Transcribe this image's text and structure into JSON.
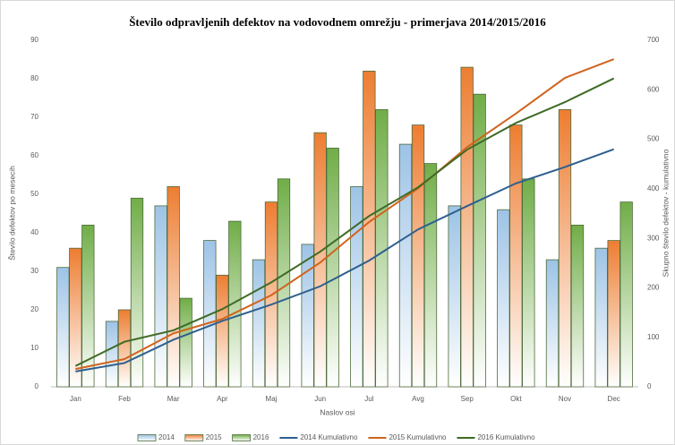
{
  "chart_data": {
    "type": "bar",
    "title": "Število odpravljenih defektov na vodovodnem omrežju - primerjava 2014/2015/2016",
    "x_label": "Naslov osi",
    "y_label": "Število defektov po mesecih",
    "y2_label": "Skupno število defektov - kumulativno",
    "categories": [
      "Jan",
      "Feb",
      "Mar",
      "Apr",
      "Maj",
      "Jun",
      "Jul",
      "Avg",
      "Sep",
      "Okt",
      "Nov",
      "Dec"
    ],
    "series": [
      {
        "name": "2014",
        "color": "#9dc3e6",
        "values": [
          31,
          17,
          47,
          38,
          33,
          37,
          52,
          63,
          47,
          46,
          33,
          36
        ]
      },
      {
        "name": "2015",
        "color": "#ed7d31",
        "values": [
          36,
          20,
          52,
          29,
          48,
          66,
          82,
          68,
          83,
          68,
          72,
          38
        ]
      },
      {
        "name": "2016",
        "color": "#70ad47",
        "values": [
          42,
          49,
          23,
          43,
          54,
          62,
          72,
          58,
          76,
          54,
          42,
          48
        ]
      },
      {
        "name": "2014 Kumulativno",
        "color": "#2e5f8f",
        "type": "line",
        "axis": "y2",
        "values": [
          31,
          48,
          95,
          133,
          166,
          203,
          255,
          318,
          365,
          411,
          444,
          480
        ]
      },
      {
        "name": "2015 Kumulativno",
        "color": "#d0631d",
        "type": "line",
        "axis": "y2",
        "values": [
          36,
          56,
          108,
          137,
          185,
          251,
          333,
          401,
          484,
          552,
          624,
          662
        ]
      },
      {
        "name": "2016 Kumulativno",
        "color": "#3f6b26",
        "type": "line",
        "axis": "y2",
        "values": [
          42,
          91,
          114,
          157,
          211,
          273,
          345,
          403,
          479,
          533,
          575,
          623
        ]
      }
    ],
    "ylim": [
      0,
      90
    ],
    "yticks": [
      0,
      10,
      20,
      30,
      40,
      50,
      60,
      70,
      80,
      90
    ],
    "y2lim": [
      0,
      700
    ],
    "y2ticks": [
      0,
      100,
      200,
      300,
      400,
      500,
      600,
      700
    ],
    "grid": false,
    "legend": "bottom"
  }
}
